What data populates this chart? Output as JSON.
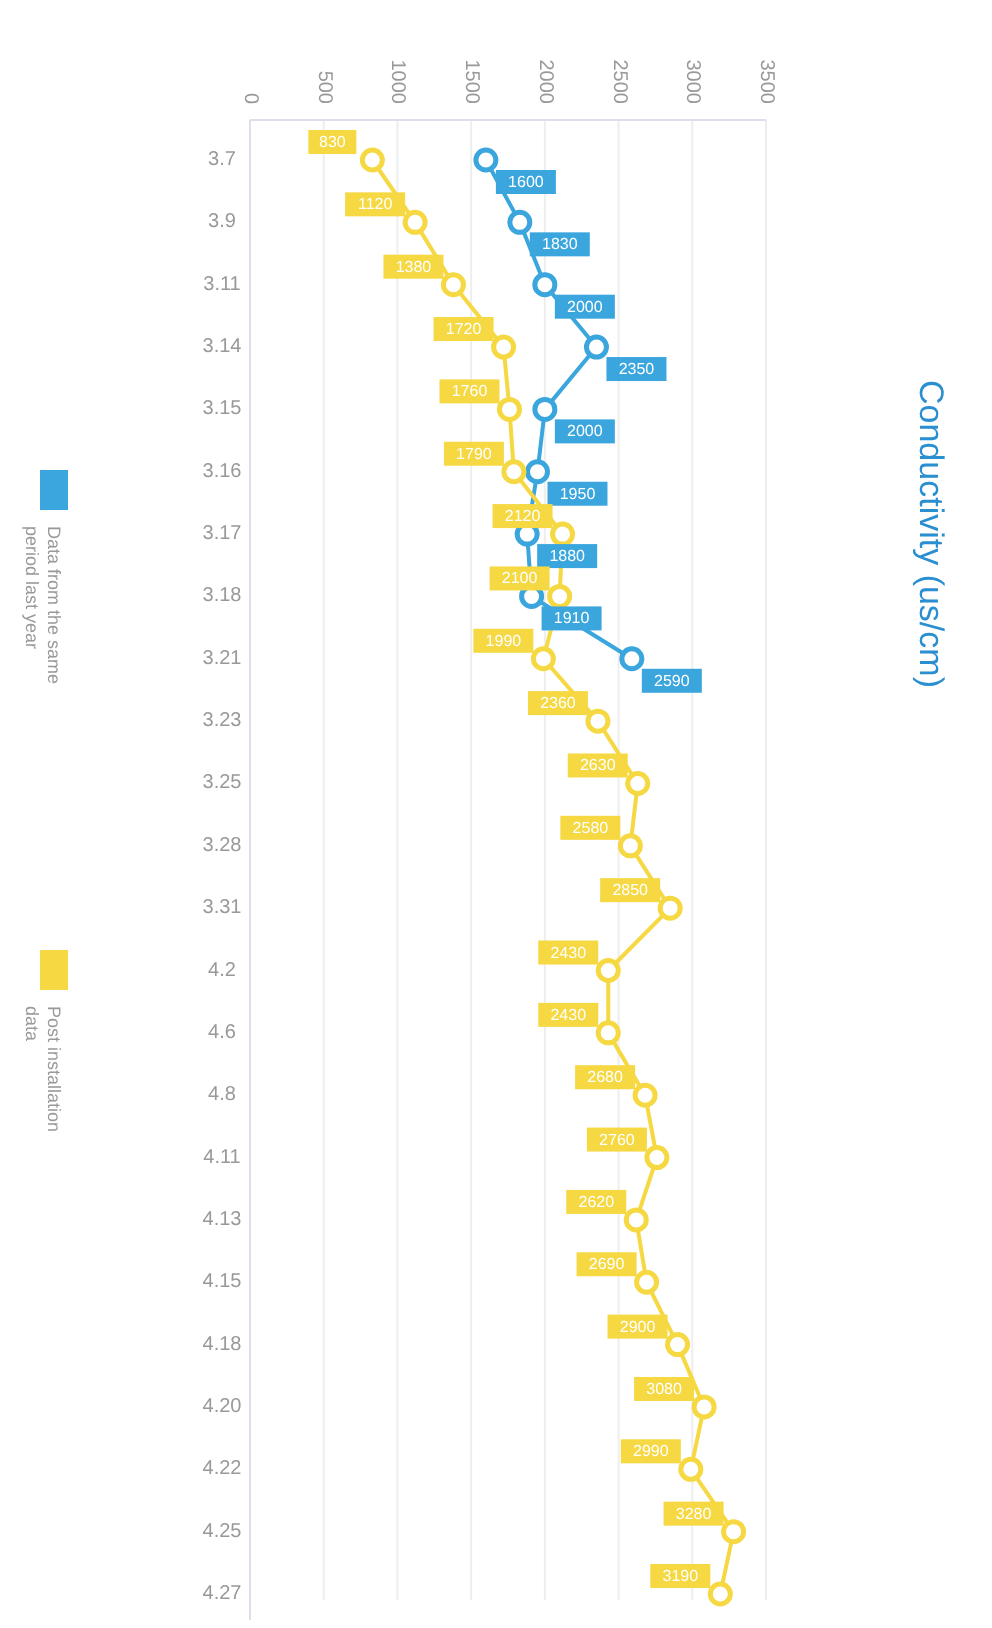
{
  "chart_data": {
    "type": "line",
    "title": "Conductivity (us/cm)",
    "orientation": "horizontal",
    "categories": [
      "3.7",
      "3.9",
      "3.11",
      "3.14",
      "3.15",
      "3.16",
      "3.17",
      "3.18",
      "3.21",
      "3.23",
      "3.25",
      "3.28",
      "3.31",
      "4.2",
      "4.6",
      "4.8",
      "4.11",
      "4.13",
      "4.15",
      "4.18",
      "4.20",
      "4.22",
      "4.25",
      "4.27"
    ],
    "series": [
      {
        "name": "Data from the same period last year",
        "color": "#3aa6dd",
        "values": [
          1600,
          1830,
          2000,
          2350,
          2000,
          1950,
          1880,
          1910,
          2590,
          null,
          null,
          null,
          null,
          null,
          null,
          null,
          null,
          null,
          null,
          null,
          null,
          null,
          null,
          null
        ]
      },
      {
        "name": "Post installation data",
        "color": "#f5d842",
        "values": [
          830,
          1120,
          1380,
          1720,
          1760,
          1790,
          2120,
          2100,
          1990,
          2360,
          2630,
          2580,
          2850,
          2430,
          2430,
          2680,
          2760,
          2620,
          2690,
          2900,
          3080,
          2990,
          3280,
          3190
        ]
      }
    ],
    "xlim": [
      0,
      3500
    ],
    "xticks": [
      0,
      500,
      1000,
      1500,
      2000,
      2500,
      3000,
      3500
    ],
    "grid": "x",
    "legend": "left",
    "marker": "circle",
    "data_labels": true
  }
}
